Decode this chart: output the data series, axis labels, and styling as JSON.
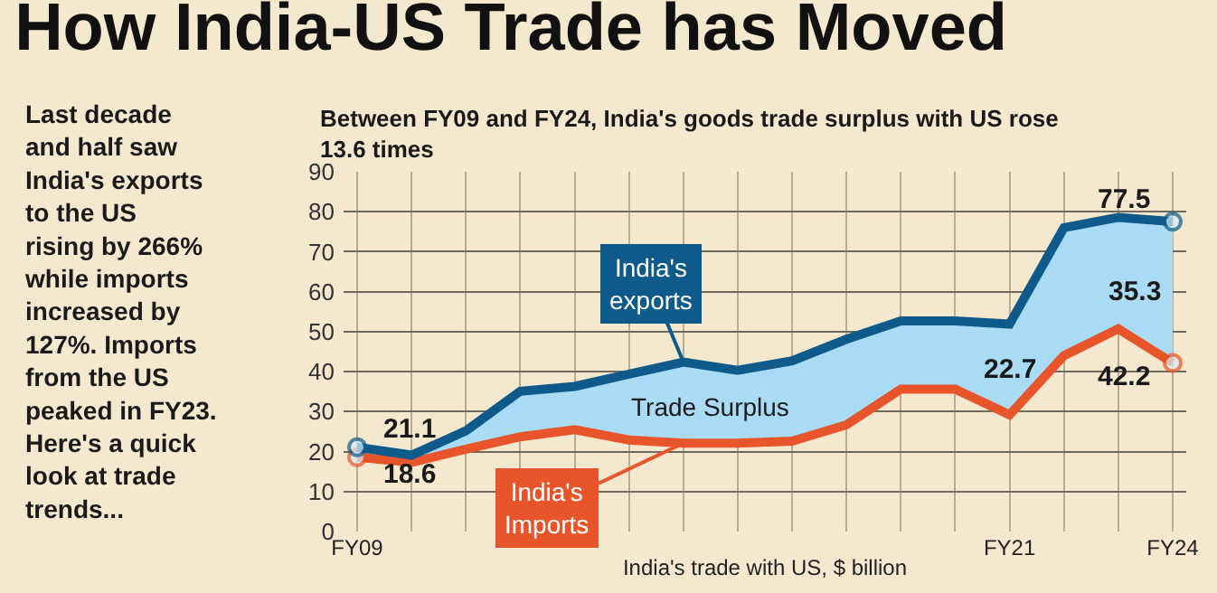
{
  "chart_data": {
    "type": "line",
    "title": "How India-US Trade has Moved",
    "subtitle": "Between FY09 and FY24, India's goods trade surplus with US rose\n13.6 times",
    "xlabel": "India's trade with US, $ billion",
    "categories": [
      "FY09",
      null,
      null,
      null,
      null,
      null,
      null,
      null,
      null,
      null,
      null,
      null,
      "FY21",
      null,
      null,
      "FY24"
    ],
    "series": [
      {
        "name": "India's exports",
        "color": "#0e5a8a",
        "values": [
          21.1,
          19.1,
          25.2,
          35.1,
          36.3,
          39.4,
          42.4,
          40.3,
          42.7,
          48.1,
          52.7,
          52.7,
          51.9,
          76.0,
          78.6,
          77.5
        ]
      },
      {
        "name": "India's Imports",
        "color": "#e8552a",
        "values": [
          18.6,
          17.3,
          20.6,
          23.7,
          25.5,
          22.9,
          22.1,
          22.1,
          22.6,
          26.7,
          35.6,
          35.6,
          29.2,
          44.0,
          50.7,
          42.2
        ]
      }
    ],
    "ylim": [
      0,
      90
    ],
    "yticks": [
      0,
      10,
      20,
      30,
      40,
      50,
      60,
      70,
      80,
      90
    ],
    "grid": true,
    "annotations": [
      "Last decade\nand half saw\nIndia's exports\nto the US\nrising by 266%\nwhile imports\nincreased by\n127%. Imports\nfrom the US\npeaked in FY23.\nHere's a quick\nlook at trade\ntrends...",
      "Trade Surplus",
      {
        "text": "21.1",
        "x": "FY09",
        "y": 21.1
      },
      {
        "text": "18.6",
        "x": "FY09",
        "y": 18.6
      },
      "22.7",
      {
        "text": "77.5",
        "x": "FY24",
        "y": 77.5
      },
      "35.3",
      {
        "text": "42.2",
        "x": "FY24",
        "y": 42.2
      }
    ]
  }
}
